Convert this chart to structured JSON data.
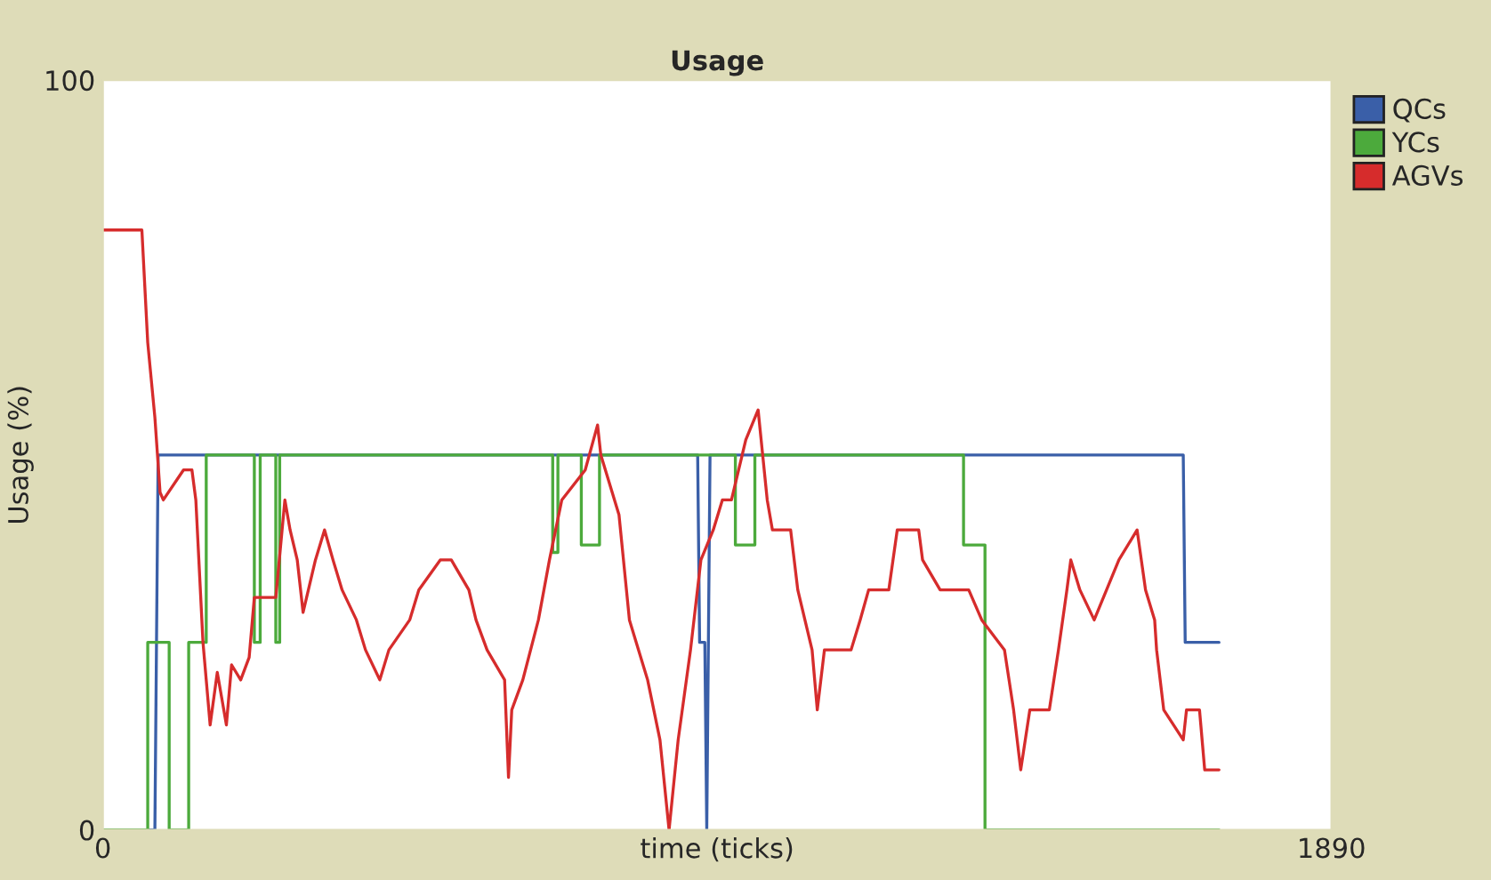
{
  "chart_data": {
    "type": "line",
    "title": "Usage",
    "xlabel": "time (ticks)",
    "ylabel": "Usage (%)",
    "xlim": [
      0,
      1890
    ],
    "ylim": [
      0,
      100
    ],
    "xticks": [
      0,
      1890
    ],
    "yticks": [
      0,
      100
    ],
    "grid": false,
    "legend": "top right",
    "marker": "none",
    "line_style": "solid",
    "series": [
      {
        "name": "QCs",
        "color": "#3a5fa8",
        "x": [
          0,
          80,
          85,
          915,
          918,
          926,
          929,
          934,
          1662,
          1665,
          1717
        ],
        "values": [
          0,
          0,
          50,
          50,
          25,
          25,
          0,
          50,
          50,
          25,
          25
        ]
      },
      {
        "name": "YCs",
        "color": "#4caa3c",
        "x": [
          0,
          69,
          69,
          102,
          102,
          132,
          132,
          159,
          159,
          233,
          233,
          242,
          242,
          266,
          266,
          272,
          272,
          692,
          692,
          700,
          700,
          736,
          736,
          764,
          764,
          973,
          973,
          1003,
          1003,
          1324,
          1324,
          1357,
          1357,
          1717
        ],
        "values": [
          0,
          0,
          25,
          25,
          0,
          0,
          25,
          25,
          50,
          50,
          25,
          25,
          50,
          50,
          25,
          25,
          50,
          50,
          37,
          37,
          50,
          50,
          38,
          38,
          50,
          50,
          38,
          38,
          50,
          50,
          38,
          38,
          0,
          0
        ]
      },
      {
        "name": "AGVs",
        "color": "#d62c2c",
        "x": [
          0,
          60,
          69,
          80,
          88,
          93,
          124,
          137,
          143,
          154,
          165,
          176,
          190,
          198,
          212,
          225,
          233,
          266,
          280,
          288,
          299,
          308,
          327,
          341,
          354,
          368,
          390,
          404,
          426,
          440,
          472,
          486,
          519,
          536,
          563,
          574,
          591,
          618,
          624,
          629,
          646,
          670,
          687,
          706,
          742,
          761,
          766,
          794,
          810,
          838,
          857,
          871,
          885,
          904,
          920,
          939,
          953,
          967,
          989,
          1008,
          1022,
          1030,
          1058,
          1069,
          1091,
          1099,
          1110,
          1151,
          1165,
          1178,
          1209,
          1222,
          1255,
          1261,
          1288,
          1332,
          1352,
          1387,
          1401,
          1412,
          1426,
          1456,
          1470,
          1483,
          1489,
          1503,
          1525,
          1544,
          1563,
          1591,
          1604,
          1618,
          1621,
          1632,
          1662,
          1667,
          1687,
          1695,
          1717
        ],
        "values": [
          80,
          80,
          65,
          55,
          45,
          44,
          48,
          48,
          44,
          25,
          14,
          21,
          14,
          22,
          20,
          23,
          31,
          31,
          44,
          40,
          36,
          29,
          36,
          40,
          36,
          32,
          28,
          24,
          20,
          24,
          28,
          32,
          36,
          36,
          32,
          28,
          24,
          20,
          7,
          16,
          20,
          28,
          36,
          44,
          48,
          54,
          50,
          42,
          28,
          20,
          12,
          0,
          12,
          24,
          36,
          40,
          44,
          44,
          52,
          56,
          44,
          40,
          40,
          32,
          24,
          16,
          24,
          24,
          28,
          32,
          32,
          40,
          40,
          36,
          32,
          32,
          28,
          24,
          16,
          8,
          16,
          16,
          24,
          32,
          36,
          32,
          28,
          32,
          36,
          40,
          32,
          28,
          24,
          16,
          12,
          16,
          16,
          8,
          8
        ]
      }
    ]
  }
}
